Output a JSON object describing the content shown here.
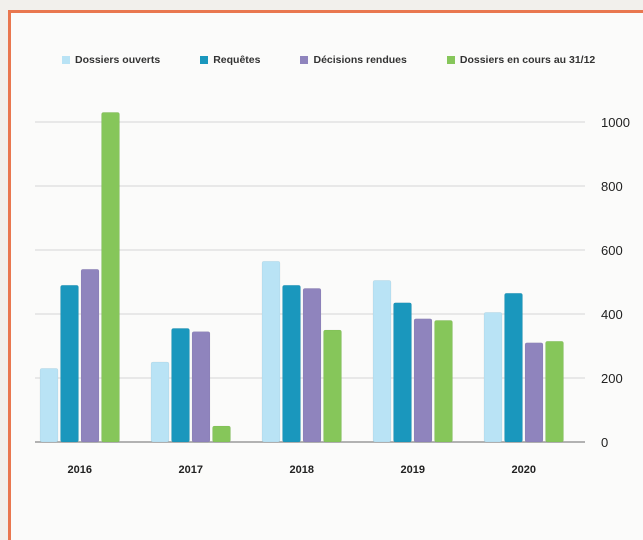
{
  "chart_data": {
    "type": "bar",
    "categories": [
      "2016",
      "2017",
      "2018",
      "2019",
      "2020"
    ],
    "series": [
      {
        "name": "Dossiers ouverts",
        "color": "#b9e3f5",
        "values": [
          230,
          250,
          565,
          505,
          405
        ]
      },
      {
        "name": "Requêtes",
        "color": "#1a97bd",
        "values": [
          490,
          355,
          490,
          435,
          465
        ]
      },
      {
        "name": "Décisions rendues",
        "color": "#8f84bd",
        "values": [
          540,
          345,
          480,
          385,
          310
        ]
      },
      {
        "name": "Dossiers en cours au 31/12",
        "color": "#86c65a",
        "values": [
          1030,
          50,
          350,
          380,
          315
        ]
      }
    ],
    "yticks": [
      0,
      200,
      400,
      600,
      800,
      1000
    ],
    "ylim": [
      0,
      1050
    ],
    "grid": true,
    "legend_position": "top",
    "y_axis_side": "right"
  }
}
